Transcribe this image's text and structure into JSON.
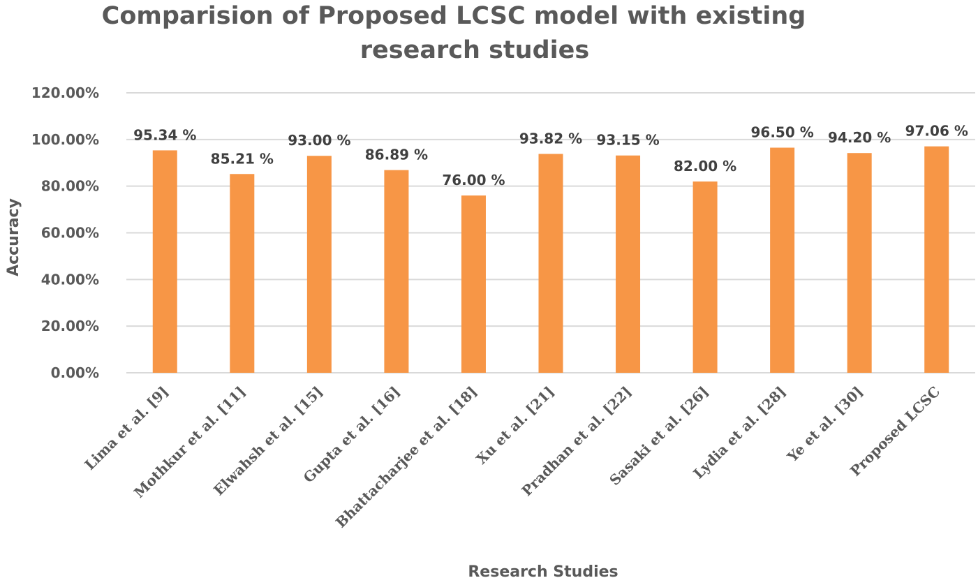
{
  "chart_data": {
    "type": "bar",
    "title_lines": [
      "Comparision of Proposed LCSC model with existing",
      "research studies"
    ],
    "xlabel": "Research Studies",
    "ylabel": "Accuracy",
    "ylim": [
      0,
      1.2
    ],
    "yticks": [
      0,
      0.2,
      0.4,
      0.6,
      0.8,
      1.0,
      1.2
    ],
    "ytick_labels": [
      "0.00%",
      "20.00%",
      "40.00%",
      "60.00%",
      "80.00%",
      "100.00%",
      "120.00%"
    ],
    "grid": true,
    "legend": "none",
    "bar_color": "#f79646",
    "categories": [
      "Lima et al. [9]",
      "Mothkur et al. [11]",
      "Elwahsh et al. [15]",
      "Gupta et al. [16]",
      "Bhattacharjee et al. [18]",
      "Xu et al.  [21]",
      "Pradhan et al. [22]",
      "Sasaki  et al. [26]",
      "Lydia et al. [28]",
      "Ye et al. [30]",
      "Proposed LCSC"
    ],
    "values": [
      0.9534,
      0.8521,
      0.93,
      0.8689,
      0.76,
      0.9382,
      0.9315,
      0.82,
      0.965,
      0.942,
      0.9706
    ],
    "data_labels": [
      "95.34 %",
      "85.21 %",
      "93.00 %",
      "86.89 %",
      "76.00 %",
      "93.82 %",
      "93.15 %",
      "82.00 %",
      "96.50 %",
      "94.20 %",
      "97.06 %"
    ]
  }
}
